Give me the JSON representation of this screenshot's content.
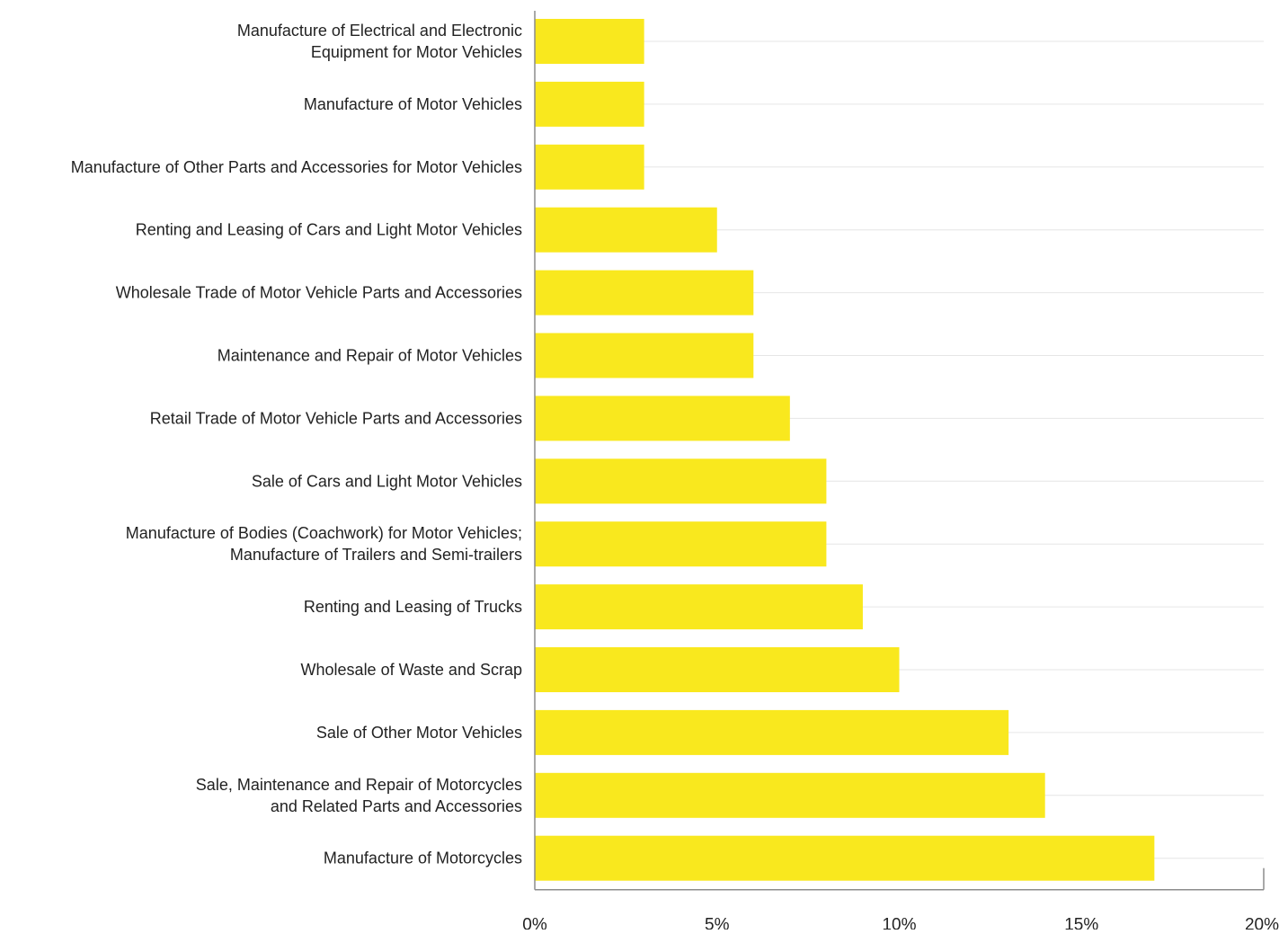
{
  "chart_data": {
    "type": "bar",
    "orientation": "horizontal",
    "title": "",
    "xlabel": "",
    "ylabel": "",
    "xlim": [
      0,
      20
    ],
    "x_ticks": [
      0,
      5,
      10,
      15,
      20
    ],
    "x_tick_labels": [
      "0%",
      "5%",
      "10%",
      "15%",
      "20%"
    ],
    "grid": true,
    "legend": "none",
    "bar_color": "#f9e81e",
    "categories": [
      [
        "Manufacture of Electrical and Electronic",
        "Equipment for Motor Vehicles"
      ],
      [
        "Manufacture of Motor Vehicles"
      ],
      [
        "Manufacture of Other Parts and Accessories for Motor Vehicles"
      ],
      [
        "Renting and Leasing of Cars and Light Motor Vehicles"
      ],
      [
        "Wholesale Trade of Motor Vehicle Parts and Accessories"
      ],
      [
        "Maintenance and Repair of Motor Vehicles"
      ],
      [
        "Retail Trade of Motor Vehicle Parts and Accessories"
      ],
      [
        "Sale of Cars and Light Motor Vehicles"
      ],
      [
        "Manufacture of Bodies (Coachwork) for Motor Vehicles;",
        "Manufacture of Trailers and Semi-trailers"
      ],
      [
        "Renting and Leasing of Trucks"
      ],
      [
        "Wholesale of Waste and Scrap"
      ],
      [
        "Sale of Other Motor Vehicles"
      ],
      [
        "Sale, Maintenance and Repair of Motorcycles",
        "and Related Parts and Accessories"
      ],
      [
        "Manufacture of Motorcycles"
      ]
    ],
    "values": [
      3,
      3,
      3,
      5,
      6,
      6,
      7,
      8,
      8,
      9,
      10,
      13,
      14,
      17
    ]
  }
}
